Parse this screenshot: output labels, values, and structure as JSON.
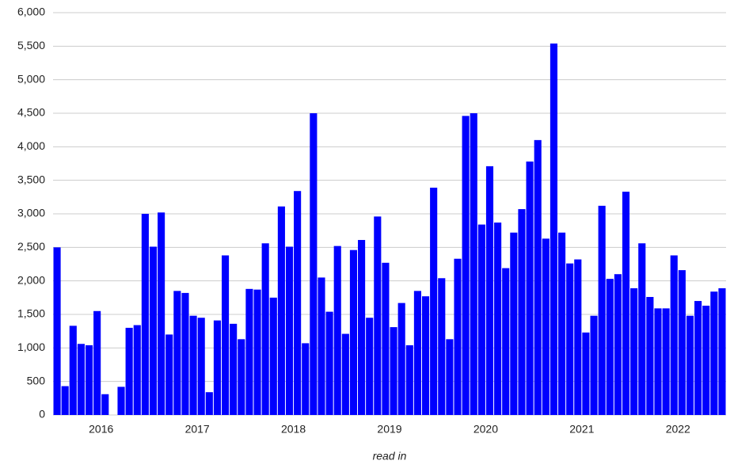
{
  "chart_data": {
    "type": "bar",
    "x_label": "read in",
    "color": "#0000ff",
    "grid": true,
    "categories": [
      null,
      null,
      null,
      null,
      null,
      null,
      "2016",
      null,
      null,
      null,
      null,
      null,
      null,
      null,
      null,
      null,
      null,
      null,
      "2017",
      null,
      null,
      null,
      null,
      null,
      null,
      null,
      null,
      null,
      null,
      null,
      "2018",
      null,
      null,
      null,
      null,
      null,
      null,
      null,
      null,
      null,
      null,
      null,
      "2019",
      null,
      null,
      null,
      null,
      null,
      null,
      null,
      null,
      null,
      null,
      null,
      "2020",
      null,
      null,
      null,
      null,
      null,
      null,
      null,
      null,
      null,
      null,
      null,
      "2021",
      null,
      null,
      null,
      null,
      null,
      null,
      null,
      null,
      null,
      null,
      null,
      "2022",
      null,
      null,
      null,
      null,
      null
    ],
    "values": [
      2500,
      430,
      1330,
      1060,
      1040,
      1550,
      310,
      0,
      420,
      1300,
      1340,
      3000,
      2510,
      3020,
      1200,
      1850,
      1820,
      1480,
      1450,
      340,
      1410,
      2380,
      1360,
      1130,
      1880,
      1870,
      2560,
      1750,
      3110,
      2510,
      3340,
      1070,
      4500,
      2050,
      1540,
      2520,
      1210,
      2460,
      2610,
      1450,
      2960,
      2270,
      1310,
      1670,
      1040,
      1850,
      1770,
      3390,
      2040,
      1130,
      2330,
      4460,
      4500,
      2840,
      3710,
      2870,
      2190,
      2720,
      3070,
      3780,
      4100,
      2630,
      5540,
      2720,
      2260,
      2320,
      1230,
      1480,
      3120,
      2030,
      2100,
      3330,
      1890,
      2560,
      1760,
      1590,
      1590,
      2380,
      2160,
      1480,
      1700,
      1630,
      1840,
      1890
    ],
    "ylim": [
      0,
      6000
    ],
    "yticks": [
      0,
      500,
      {
        "value": 1000,
        "label": "1,000"
      },
      {
        "value": 1500,
        "label": "1,500"
      },
      {
        "value": 2000,
        "label": "2,000"
      },
      {
        "value": 2500,
        "label": "2,500"
      },
      {
        "value": 3000,
        "label": "3,000"
      },
      {
        "value": 3500,
        "label": "3,500"
      },
      {
        "value": 4000,
        "label": "4,000"
      },
      {
        "value": 4500,
        "label": "4,500"
      },
      {
        "value": 5000,
        "label": "5,000"
      },
      {
        "value": 5500,
        "label": "5,500"
      },
      {
        "value": 6000,
        "label": "6,000"
      }
    ]
  }
}
